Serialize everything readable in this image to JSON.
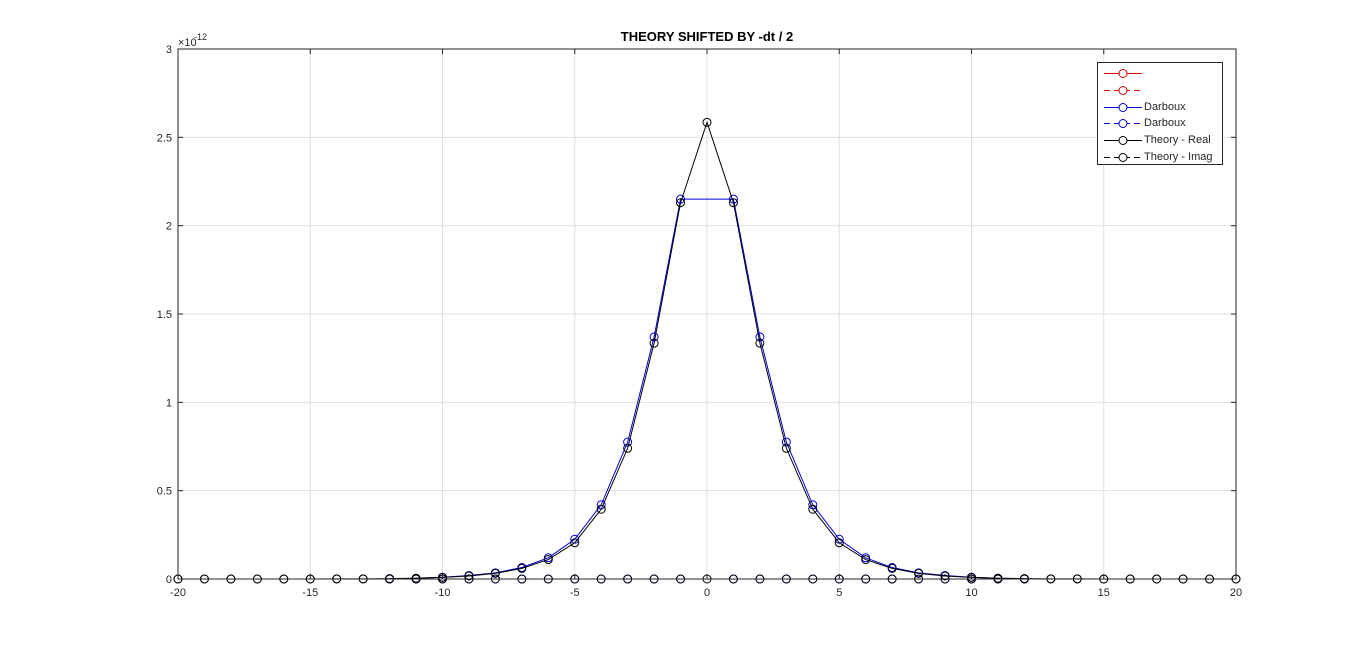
{
  "chart_data": {
    "type": "line",
    "title": "THEORY SHIFTED BY -dt / 2",
    "xlabel": "",
    "ylabel": "",
    "xlim": [
      -20,
      20
    ],
    "ylim": [
      0,
      3
    ],
    "y_exponent_label": "×10",
    "y_exponent_power": "-12",
    "xticks": [
      -20,
      -15,
      -10,
      -5,
      0,
      5,
      10,
      15,
      20
    ],
    "yticks": [
      0,
      0.5,
      1,
      1.5,
      2,
      2.5,
      3
    ],
    "xtick_labels": [
      "-20",
      "-15",
      "-10",
      "-5",
      "0",
      "5",
      "10",
      "15",
      "20"
    ],
    "ytick_labels": [
      "0",
      "0.5",
      "1",
      "1.5",
      "2",
      "2.5",
      "3"
    ],
    "grid": true,
    "legend_position": "top-right",
    "x": [
      -20,
      -19,
      -18,
      -17,
      -16,
      -15,
      -14,
      -13,
      -12,
      -11,
      -10,
      -9,
      -8,
      -7,
      -6,
      -5,
      -4,
      -3,
      -2,
      -1,
      0,
      1,
      2,
      3,
      4,
      5,
      6,
      7,
      8,
      9,
      10,
      11,
      12,
      13,
      14,
      15,
      16,
      17,
      18,
      19,
      20
    ],
    "series": [
      {
        "name": "",
        "color": "#e00000",
        "dash": "solid",
        "marker": "circle",
        "visible": false,
        "values": [
          0,
          0,
          0,
          0,
          0,
          0,
          0,
          0,
          0,
          0,
          0,
          0,
          0,
          0,
          0,
          0,
          0,
          0,
          0,
          0,
          0,
          0,
          0,
          0,
          0,
          0,
          0,
          0,
          0,
          0,
          0,
          0,
          0,
          0,
          0,
          0,
          0,
          0,
          0,
          0,
          0
        ]
      },
      {
        "name": "",
        "color": "#e00000",
        "dash": "dashed",
        "marker": "circle",
        "visible": false,
        "values": [
          0,
          0,
          0,
          0,
          0,
          0,
          0,
          0,
          0,
          0,
          0,
          0,
          0,
          0,
          0,
          0,
          0,
          0,
          0,
          0,
          0,
          0,
          0,
          0,
          0,
          0,
          0,
          0,
          0,
          0,
          0,
          0,
          0,
          0,
          0,
          0,
          0,
          0,
          0,
          0,
          0
        ]
      },
      {
        "name": "Darboux",
        "color": "#0000e0",
        "dash": "solid",
        "marker": "circle",
        "visible": true,
        "x": [
          -12,
          -11,
          -10,
          -9,
          -8,
          -7,
          -6,
          -5,
          -4,
          -3,
          -2,
          -1,
          1,
          2,
          3,
          4,
          5,
          6,
          7,
          8,
          9,
          10,
          11,
          12
        ],
        "values": [
          0.002,
          0.004,
          0.01,
          0.02,
          0.035,
          0.065,
          0.12,
          0.225,
          0.42,
          0.775,
          1.37,
          2.15,
          2.15,
          1.37,
          0.775,
          0.42,
          0.225,
          0.12,
          0.065,
          0.035,
          0.02,
          0.01,
          0.004,
          0.002
        ]
      },
      {
        "name": "Darboux",
        "color": "#0000e0",
        "dash": "dashed",
        "marker": "circle",
        "visible": true,
        "x": [
          -12,
          -11,
          -10,
          -9,
          -8,
          -7,
          -6,
          -5,
          -4,
          -3,
          -2,
          -1,
          1,
          2,
          3,
          4,
          5,
          6,
          7,
          8,
          9,
          10,
          11,
          12
        ],
        "values": [
          0,
          0,
          0,
          0,
          0,
          0,
          0,
          0,
          0,
          0,
          0,
          0,
          0,
          0,
          0,
          0,
          0,
          0,
          0,
          0,
          0,
          0,
          0,
          0
        ]
      },
      {
        "name": "Theory - Real",
        "color": "#000000",
        "dash": "solid",
        "marker": "circle",
        "visible": true,
        "x": [
          -20,
          -19,
          -18,
          -17,
          -16,
          -15,
          -14,
          -13,
          -12,
          -11,
          -10,
          -9,
          -8,
          -7,
          -6,
          -5,
          -4,
          -3,
          -2,
          -1,
          0,
          1,
          2,
          3,
          4,
          5,
          6,
          7,
          8,
          9,
          10,
          11,
          12,
          13,
          14,
          15,
          16,
          17,
          18,
          19,
          20
        ],
        "values": [
          0,
          0,
          0,
          0,
          0,
          0,
          0.001,
          0.001,
          0.002,
          0.004,
          0.009,
          0.017,
          0.032,
          0.06,
          0.11,
          0.205,
          0.395,
          0.74,
          1.335,
          2.13,
          2.585,
          2.13,
          1.335,
          0.74,
          0.395,
          0.205,
          0.11,
          0.06,
          0.032,
          0.017,
          0.009,
          0.004,
          0.002,
          0.001,
          0.001,
          0,
          0,
          0,
          0,
          0,
          0
        ]
      },
      {
        "name": "Theory - Imag",
        "color": "#000000",
        "dash": "dashed",
        "marker": "circle",
        "visible": true,
        "x": [
          -20,
          -19,
          -18,
          -17,
          -16,
          -15,
          -14,
          -13,
          -12,
          -11,
          -10,
          -9,
          -8,
          -7,
          -6,
          -5,
          -4,
          -3,
          -2,
          -1,
          0,
          1,
          2,
          3,
          4,
          5,
          6,
          7,
          8,
          9,
          10,
          11,
          12,
          13,
          14,
          15,
          16,
          17,
          18,
          19,
          20
        ],
        "values": [
          0,
          0,
          0,
          0,
          0,
          0,
          0,
          0,
          0,
          0,
          0,
          0,
          0,
          0,
          0,
          0,
          0,
          0,
          0,
          0,
          0,
          0,
          0,
          0,
          0,
          0,
          0,
          0,
          0,
          0,
          0,
          0,
          0,
          0,
          0,
          0,
          0,
          0,
          0,
          0,
          0
        ]
      }
    ]
  }
}
